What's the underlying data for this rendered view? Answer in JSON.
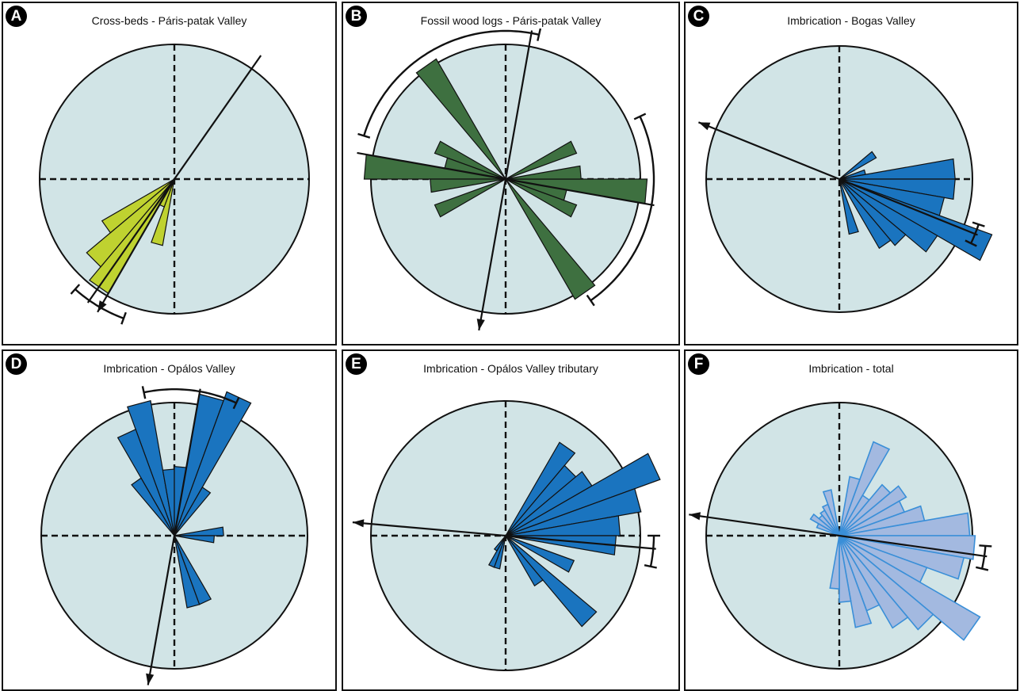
{
  "colors": {
    "background": "#d1e4e6",
    "cross_beds": "#bfd230",
    "fossil_wood": "#3e7040",
    "imbrication": "#1a74bf",
    "imbrication_total_fill": "#a3b9e0",
    "imbrication_total_stroke": "#3a8fd8"
  },
  "chart_data": [
    {
      "type": "rose",
      "label": "A",
      "title": "Cross-beds - Páris-patak Valley",
      "color": "cross_beds",
      "petals": [
        {
          "az": 195,
          "r": 0.5
        },
        {
          "az": 205,
          "r": 0.22
        },
        {
          "az": 215,
          "r": 0.98
        },
        {
          "az": 225,
          "r": 0.85
        },
        {
          "az": 235,
          "r": 0.62
        }
      ],
      "axis_line": [
        215,
        35
      ],
      "arrow_direction": 210,
      "error_arc": [
        200,
        222
      ]
    },
    {
      "type": "rose",
      "label": "B",
      "title": "Fossil wood logs - Páris-patak Valley",
      "color": "fossil_wood",
      "petals": [
        {
          "az": 95,
          "r": 1.05
        },
        {
          "az": 275,
          "r": 1.05
        },
        {
          "az": 145,
          "r": 1.03
        },
        {
          "az": 325,
          "r": 1.03
        },
        {
          "az": 65,
          "r": 0.56
        },
        {
          "az": 245,
          "r": 0.56
        },
        {
          "az": 85,
          "r": 0.56
        },
        {
          "az": 265,
          "r": 0.56
        },
        {
          "az": 115,
          "r": 0.56
        },
        {
          "az": 295,
          "r": 0.56
        },
        {
          "az": 105,
          "r": 0.46
        },
        {
          "az": 285,
          "r": 0.46
        }
      ],
      "axis_line": [
        100,
        280
      ],
      "axis_line_2": [
        10
      ],
      "arrow_direction": 190,
      "error_arc": [
        -73,
        13
      ],
      "error_arc_2": [
        65,
        145
      ]
    },
    {
      "type": "rose",
      "label": "C",
      "title": "Imbrication - Bogas Valley",
      "color": "imbrication",
      "petals": [
        {
          "az": 55,
          "r": 0.32
        },
        {
          "az": 75,
          "r": 0.2
        },
        {
          "az": 85,
          "r": 0.87
        },
        {
          "az": 95,
          "r": 0.87
        },
        {
          "az": 105,
          "r": 0.8
        },
        {
          "az": 115,
          "r": 1.22
        },
        {
          "az": 125,
          "r": 0.85
        },
        {
          "az": 135,
          "r": 0.65
        },
        {
          "az": 145,
          "r": 0.6
        },
        {
          "az": 165,
          "r": 0.42
        }
      ],
      "axis_line": [
        112
      ],
      "arrow_direction": 292,
      "error_arc": [
        108,
        116
      ]
    },
    {
      "type": "rose",
      "label": "D",
      "title": "Imbrication - Opálos Valley",
      "color": "imbrication",
      "petals": [
        {
          "az": 345,
          "r": 1.03
        },
        {
          "az": 335,
          "r": 0.85
        },
        {
          "az": 325,
          "r": 0.5
        },
        {
          "az": 355,
          "r": 0.5
        },
        {
          "az": 5,
          "r": 0.52
        },
        {
          "az": 15,
          "r": 1.08
        },
        {
          "az": 25,
          "r": 1.15
        },
        {
          "az": 35,
          "r": 0.42
        },
        {
          "az": 85,
          "r": 0.37
        },
        {
          "az": 95,
          "r": 0.3
        },
        {
          "az": 155,
          "r": 0.55
        },
        {
          "az": 165,
          "r": 0.55
        }
      ],
      "axis_line": [
        10
      ],
      "arrow_direction": 190,
      "error_arc": [
        -12,
        25
      ]
    },
    {
      "type": "rose",
      "label": "E",
      "title": "Imbrication - Opálos Valley tributary",
      "color": "imbrication",
      "petals": [
        {
          "az": 35,
          "r": 0.8
        },
        {
          "az": 45,
          "r": 0.68
        },
        {
          "az": 55,
          "r": 0.74
        },
        {
          "az": 65,
          "r": 1.22
        },
        {
          "az": 75,
          "r": 1.02
        },
        {
          "az": 85,
          "r": 0.85
        },
        {
          "az": 95,
          "r": 0.82
        },
        {
          "az": 115,
          "r": 0.54
        },
        {
          "az": 135,
          "r": 0.88
        },
        {
          "az": 145,
          "r": 0.43
        },
        {
          "az": 195,
          "r": 0.25
        },
        {
          "az": 205,
          "r": 0.25
        },
        {
          "az": 215,
          "r": 0.13
        }
      ],
      "axis_line": [
        95
      ],
      "arrow_direction": 275,
      "error_arc": [
        90,
        102
      ]
    },
    {
      "type": "rose",
      "label": "F",
      "title": "Imbrication - total",
      "color": "imbrication_total",
      "petals": [
        {
          "az": 25,
          "r": 0.75
        },
        {
          "az": 35,
          "r": 0.35
        },
        {
          "az": 45,
          "r": 0.5
        },
        {
          "az": 55,
          "r": 0.58
        },
        {
          "az": 65,
          "r": 0.52
        },
        {
          "az": 75,
          "r": 0.65
        },
        {
          "az": 85,
          "r": 0.98
        },
        {
          "az": 95,
          "r": 1.02
        },
        {
          "az": 105,
          "r": 0.95
        },
        {
          "az": 115,
          "r": 0.7
        },
        {
          "az": 125,
          "r": 1.22
        },
        {
          "az": 135,
          "r": 0.92
        },
        {
          "az": 145,
          "r": 0.8
        },
        {
          "az": 155,
          "r": 0.6
        },
        {
          "az": 165,
          "r": 0.7
        },
        {
          "az": 175,
          "r": 0.5
        },
        {
          "az": 185,
          "r": 0.4
        },
        {
          "az": 345,
          "r": 0.35
        },
        {
          "az": 335,
          "r": 0.25
        },
        {
          "az": 325,
          "r": 0.22
        },
        {
          "az": 315,
          "r": 0.2
        },
        {
          "az": 305,
          "r": 0.25
        },
        {
          "az": 295,
          "r": 0.18
        },
        {
          "az": 15,
          "r": 0.45
        }
      ],
      "axis_line": [
        98
      ],
      "arrow_direction": 278,
      "error_arc": [
        94,
        103
      ]
    }
  ]
}
